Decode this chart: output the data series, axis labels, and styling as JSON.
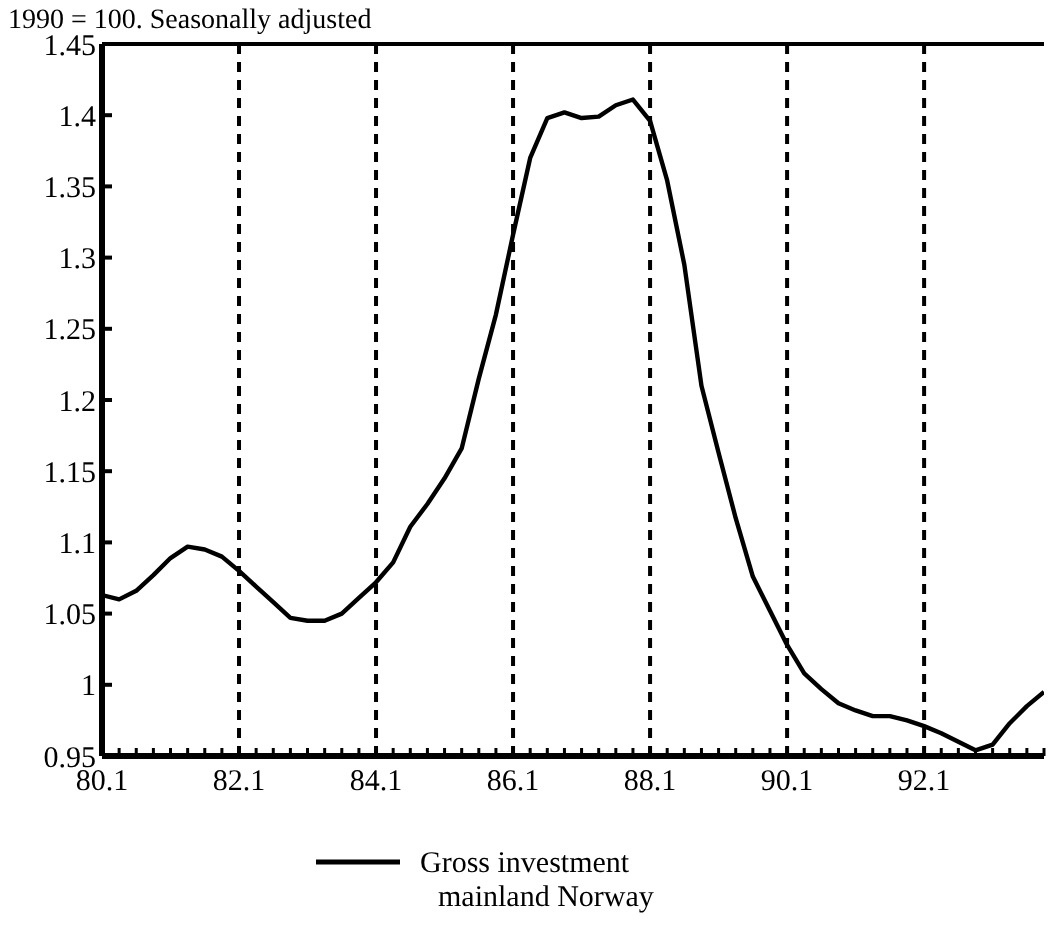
{
  "chart_data": {
    "type": "line",
    "title": "1990 = 100. Seasonally adjusted",
    "ylim": [
      0.95,
      1.45
    ],
    "yticks": [
      0.95,
      1,
      1.05,
      1.1,
      1.15,
      1.2,
      1.25,
      1.3,
      1.35,
      1.4,
      1.45
    ],
    "categories": [
      "80.1",
      null,
      null,
      null,
      null,
      null,
      null,
      null,
      "82.1",
      null,
      null,
      null,
      null,
      null,
      null,
      null,
      "84.1",
      null,
      null,
      null,
      null,
      null,
      null,
      null,
      "86.1",
      null,
      null,
      null,
      null,
      null,
      null,
      null,
      "88.1",
      null,
      null,
      null,
      null,
      null,
      null,
      null,
      "90.1",
      null,
      null,
      null,
      null,
      null,
      null,
      null,
      "92.1",
      null,
      null,
      null,
      null,
      null,
      null,
      null
    ],
    "grid": "x",
    "legend": "bottom",
    "line_style": "solid",
    "marker": "none",
    "series": [
      {
        "name": "Gross investment mainland Norway",
        "color": "#000000",
        "values": [
          1.063,
          1.06,
          1.066,
          1.077,
          1.089,
          1.097,
          1.095,
          1.09,
          1.08,
          1.069,
          1.058,
          1.047,
          1.045,
          1.045,
          1.05,
          1.061,
          1.072,
          1.086,
          1.111,
          1.127,
          1.145,
          1.166,
          1.215,
          1.26,
          1.316,
          1.37,
          1.398,
          1.402,
          1.398,
          1.399,
          1.407,
          1.411,
          1.396,
          1.354,
          1.295,
          1.21,
          1.163,
          1.117,
          1.076,
          1.052,
          1.028,
          1.008,
          0.997,
          0.987,
          0.982,
          0.978,
          0.978,
          0.975,
          0.971,
          0.966,
          0.96,
          0.954,
          0.958,
          0.973,
          0.985,
          0.995
        ]
      }
    ]
  }
}
